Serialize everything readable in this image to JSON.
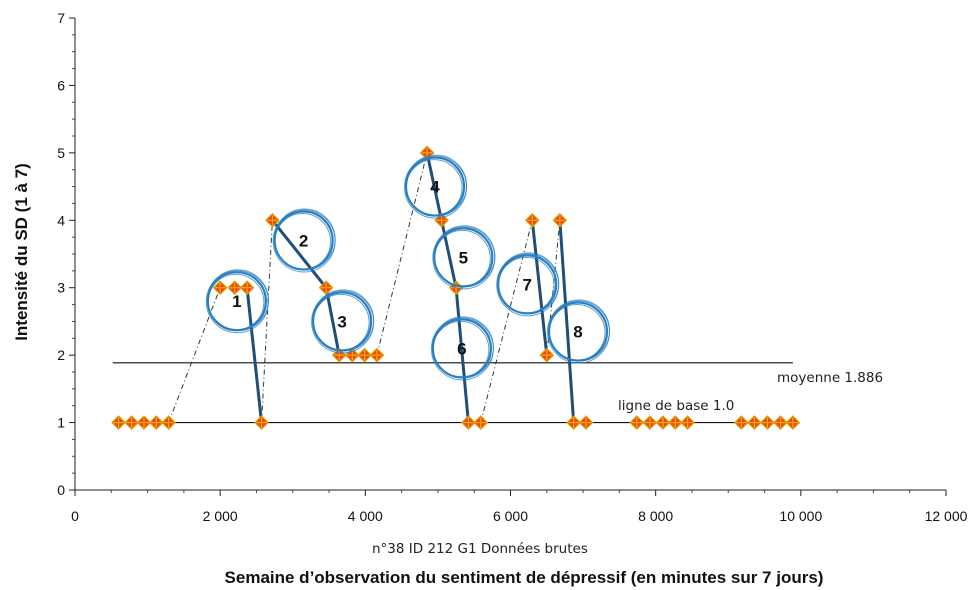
{
  "chart_data": {
    "type": "scatter",
    "xlabel": "Semaine d’observation du sentiment de dépressif (en minutes sur 7 jours)",
    "ylabel": "Intensité du SD (1 à 7)",
    "subtitle": "n°38   ID 212   G1 Données brutes",
    "xlim": [
      0,
      12000
    ],
    "ylim": [
      0,
      7
    ],
    "x_ticks": [
      0,
      2000,
      4000,
      6000,
      8000,
      10000,
      12000
    ],
    "x_tick_labels": [
      "0",
      "2 000",
      "4 000",
      "6 000",
      "8 000",
      "10 000",
      "12 000"
    ],
    "y_ticks": [
      0,
      1,
      2,
      3,
      4,
      5,
      6,
      7
    ],
    "y_tick_labels": [
      "0",
      "1",
      "2",
      "3",
      "4",
      "5",
      "6",
      "7"
    ],
    "points": [
      {
        "x": 600,
        "y": 1
      },
      {
        "x": 780,
        "y": 1
      },
      {
        "x": 950,
        "y": 1
      },
      {
        "x": 1120,
        "y": 1
      },
      {
        "x": 1290,
        "y": 1
      },
      {
        "x": 2000,
        "y": 3
      },
      {
        "x": 2200,
        "y": 3
      },
      {
        "x": 2370,
        "y": 3
      },
      {
        "x": 2570,
        "y": 1
      },
      {
        "x": 2720,
        "y": 4
      },
      {
        "x": 3460,
        "y": 3
      },
      {
        "x": 3640,
        "y": 2
      },
      {
        "x": 3820,
        "y": 2
      },
      {
        "x": 3990,
        "y": 2
      },
      {
        "x": 4160,
        "y": 2
      },
      {
        "x": 4850,
        "y": 5
      },
      {
        "x": 5050,
        "y": 4
      },
      {
        "x": 5250,
        "y": 3
      },
      {
        "x": 5420,
        "y": 1
      },
      {
        "x": 5590,
        "y": 1
      },
      {
        "x": 6300,
        "y": 4
      },
      {
        "x": 6500,
        "y": 2
      },
      {
        "x": 6680,
        "y": 4
      },
      {
        "x": 6870,
        "y": 1
      },
      {
        "x": 7040,
        "y": 1
      },
      {
        "x": 7740,
        "y": 1
      },
      {
        "x": 7920,
        "y": 1
      },
      {
        "x": 8100,
        "y": 1
      },
      {
        "x": 8270,
        "y": 1
      },
      {
        "x": 8440,
        "y": 1
      },
      {
        "x": 9180,
        "y": 1
      },
      {
        "x": 9360,
        "y": 1
      },
      {
        "x": 9540,
        "y": 1
      },
      {
        "x": 9720,
        "y": 1
      },
      {
        "x": 9890,
        "y": 1
      }
    ],
    "reference_lines": [
      {
        "label": "moyenne 1.886",
        "y": 1.886,
        "x_range": [
          600,
          9900
        ]
      },
      {
        "label": "ligne de base 1.0",
        "y": 1.0,
        "x_range": [
          600,
          9900
        ]
      }
    ],
    "dashed_segments": [
      {
        "from": [
          1290,
          1
        ],
        "to": [
          2000,
          3
        ]
      },
      {
        "from": [
          2570,
          1
        ],
        "to": [
          2720,
          4
        ]
      },
      {
        "from": [
          4160,
          2
        ],
        "to": [
          4850,
          5
        ]
      },
      {
        "from": [
          5590,
          1
        ],
        "to": [
          6300,
          4
        ]
      },
      {
        "from": [
          6500,
          2
        ],
        "to": [
          6680,
          4
        ]
      }
    ],
    "drop_segments": [
      {
        "label": "1",
        "from": [
          2370,
          3
        ],
        "to": [
          2570,
          1
        ]
      },
      {
        "label": "2",
        "from": [
          2720,
          4
        ],
        "to": [
          3460,
          3
        ]
      },
      {
        "label": "3",
        "from": [
          3460,
          3
        ],
        "to": [
          3640,
          2
        ]
      },
      {
        "label": "4",
        "from": [
          4850,
          5
        ],
        "to": [
          5050,
          4
        ]
      },
      {
        "label": "5",
        "from": [
          5050,
          4
        ],
        "to": [
          5250,
          3
        ]
      },
      {
        "label": "6",
        "from": [
          5250,
          3
        ],
        "to": [
          5420,
          1
        ]
      },
      {
        "label": "7",
        "from": [
          6300,
          4
        ],
        "to": [
          6500,
          2
        ]
      },
      {
        "label": "8",
        "from": [
          6680,
          4
        ],
        "to": [
          6870,
          1
        ]
      }
    ],
    "circled_annotations": [
      {
        "label": "1",
        "x": 2230,
        "y": 2.8
      },
      {
        "label": "2",
        "x": 3150,
        "y": 3.7
      },
      {
        "label": "3",
        "x": 3680,
        "y": 2.5
      },
      {
        "label": "4",
        "x": 4960,
        "y": 4.5
      },
      {
        "label": "5",
        "x": 5350,
        "y": 3.45
      },
      {
        "label": "6",
        "x": 5330,
        "y": 2.1
      },
      {
        "label": "7",
        "x": 6230,
        "y": 3.05
      },
      {
        "label": "8",
        "x": 6930,
        "y": 2.35
      }
    ],
    "colors": {
      "marker_fill": "#ff3b1a",
      "marker_edge": "#d4a000",
      "drop_line": "#1f4f77",
      "circle": "#2a7fc0",
      "reference_line": "#111111"
    }
  }
}
